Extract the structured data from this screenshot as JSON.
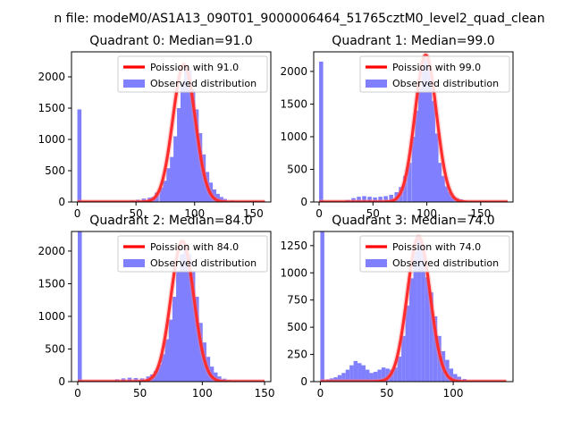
{
  "figure": {
    "suptitle": "n file: modeM0/AS1A13_090T01_9000006464_51765cztM0_level2_quad_clean"
  },
  "colors": {
    "hist": "#8080ff",
    "poisson": "#ff0000",
    "poisson_alpha_line": "#ff8080",
    "axes": "#000000"
  },
  "chart_data": [
    {
      "type": "bar",
      "title": "Quadrant 0: Median=91.0",
      "xlabel": "",
      "ylabel": "",
      "xlim": [
        -5,
        165
      ],
      "ylim": [
        0,
        2400
      ],
      "xticks": [
        0,
        50,
        100,
        150
      ],
      "yticks": [
        0,
        500,
        1000,
        1500,
        2000
      ],
      "bin_width": 3.5,
      "bins": [
        [
          0,
          1480
        ],
        [
          3,
          0
        ],
        [
          10,
          0
        ],
        [
          20,
          5
        ],
        [
          30,
          10
        ],
        [
          40,
          15
        ],
        [
          45,
          25
        ],
        [
          50,
          35
        ],
        [
          55,
          55
        ],
        [
          60,
          70
        ],
        [
          63,
          80
        ],
        [
          66,
          150
        ],
        [
          70,
          230
        ],
        [
          73,
          340
        ],
        [
          76,
          540
        ],
        [
          79,
          720
        ],
        [
          82,
          1050
        ],
        [
          85,
          1500
        ],
        [
          88,
          1900
        ],
        [
          91,
          2150
        ],
        [
          94,
          2100
        ],
        [
          97,
          1800
        ],
        [
          100,
          1480
        ],
        [
          103,
          1100
        ],
        [
          106,
          760
        ],
        [
          109,
          480
        ],
        [
          112,
          310
        ],
        [
          115,
          200
        ],
        [
          118,
          130
        ],
        [
          121,
          80
        ],
        [
          124,
          50
        ],
        [
          130,
          25
        ],
        [
          140,
          10
        ],
        [
          150,
          5
        ],
        [
          160,
          2
        ]
      ],
      "poisson": {
        "lambda": 91.0,
        "peak": 2200
      },
      "legend": {
        "placement": "top-right",
        "entries": [
          "Poission with 91.0",
          "Observed distribution"
        ]
      }
    },
    {
      "type": "bar",
      "title": "Quadrant 1: Median=99.0",
      "xlabel": "",
      "ylabel": "",
      "xlim": [
        -5,
        180
      ],
      "ylim": [
        0,
        2300
      ],
      "xticks": [
        0,
        50,
        100,
        150
      ],
      "yticks": [
        0,
        500,
        1000,
        1500,
        2000
      ],
      "bin_width": 3.8,
      "bins": [
        [
          0,
          2150
        ],
        [
          5,
          0
        ],
        [
          15,
          10
        ],
        [
          25,
          30
        ],
        [
          30,
          60
        ],
        [
          35,
          80
        ],
        [
          40,
          90
        ],
        [
          45,
          80
        ],
        [
          50,
          70
        ],
        [
          55,
          80
        ],
        [
          60,
          90
        ],
        [
          65,
          110
        ],
        [
          70,
          150
        ],
        [
          74,
          230
        ],
        [
          78,
          400
        ],
        [
          82,
          600
        ],
        [
          86,
          1000
        ],
        [
          89,
          1400
        ],
        [
          92,
          1750
        ],
        [
          95,
          2150
        ],
        [
          98,
          2200
        ],
        [
          101,
          2050
        ],
        [
          104,
          1550
        ],
        [
          107,
          1050
        ],
        [
          110,
          600
        ],
        [
          113,
          400
        ],
        [
          116,
          240
        ],
        [
          119,
          160
        ],
        [
          122,
          100
        ],
        [
          126,
          60
        ],
        [
          130,
          40
        ],
        [
          140,
          20
        ],
        [
          150,
          8
        ],
        [
          165,
          3
        ]
      ],
      "poisson": {
        "lambda": 99.0,
        "peak": 2250
      },
      "legend": {
        "placement": "top-right",
        "entries": [
          "Poission with 99.0",
          "Observed distribution"
        ]
      }
    },
    {
      "type": "bar",
      "title": "Quadrant 2: Median=84.0",
      "xlabel": "",
      "ylabel": "",
      "xlim": [
        -5,
        155
      ],
      "ylim": [
        0,
        2300
      ],
      "xticks": [
        0,
        50,
        100,
        150
      ],
      "yticks": [
        0,
        500,
        1000,
        1500,
        2000
      ],
      "bin_width": 3.3,
      "bins": [
        [
          0,
          2300
        ],
        [
          5,
          0
        ],
        [
          15,
          5
        ],
        [
          25,
          20
        ],
        [
          30,
          35
        ],
        [
          35,
          50
        ],
        [
          40,
          60
        ],
        [
          45,
          55
        ],
        [
          50,
          50
        ],
        [
          55,
          80
        ],
        [
          58,
          110
        ],
        [
          61,
          160
        ],
        [
          64,
          260
        ],
        [
          67,
          420
        ],
        [
          70,
          650
        ],
        [
          73,
          950
        ],
        [
          76,
          1300
        ],
        [
          79,
          1700
        ],
        [
          82,
          1950
        ],
        [
          85,
          2100
        ],
        [
          88,
          1950
        ],
        [
          91,
          1700
        ],
        [
          94,
          1300
        ],
        [
          97,
          900
        ],
        [
          100,
          600
        ],
        [
          103,
          380
        ],
        [
          106,
          230
        ],
        [
          109,
          140
        ],
        [
          112,
          80
        ],
        [
          116,
          45
        ],
        [
          120,
          25
        ],
        [
          130,
          12
        ],
        [
          140,
          5
        ],
        [
          150,
          2
        ]
      ],
      "poisson": {
        "lambda": 84.0,
        "peak": 2150
      },
      "legend": {
        "placement": "top-right",
        "entries": [
          "Poission with 84.0",
          "Observed distribution"
        ]
      }
    },
    {
      "type": "bar",
      "title": "Quadrant 3: Median=74.0",
      "xlabel": "",
      "ylabel": "",
      "xlim": [
        -5,
        145
      ],
      "ylim": [
        0,
        1380
      ],
      "xticks": [
        0,
        50,
        100
      ],
      "yticks": [
        0,
        250,
        500,
        750,
        1000,
        1250
      ],
      "bin_width": 3.0,
      "bins": [
        [
          0,
          1380
        ],
        [
          4,
          20
        ],
        [
          7,
          30
        ],
        [
          10,
          40
        ],
        [
          13,
          60
        ],
        [
          16,
          80
        ],
        [
          19,
          110
        ],
        [
          22,
          150
        ],
        [
          25,
          190
        ],
        [
          28,
          170
        ],
        [
          31,
          150
        ],
        [
          34,
          110
        ],
        [
          37,
          80
        ],
        [
          40,
          90
        ],
        [
          43,
          110
        ],
        [
          46,
          130
        ],
        [
          49,
          120
        ],
        [
          52,
          110
        ],
        [
          55,
          130
        ],
        [
          58,
          230
        ],
        [
          61,
          420
        ],
        [
          64,
          700
        ],
        [
          67,
          950
        ],
        [
          70,
          1200
        ],
        [
          73,
          1320
        ],
        [
          76,
          1250
        ],
        [
          79,
          960
        ],
        [
          82,
          820
        ],
        [
          85,
          600
        ],
        [
          88,
          420
        ],
        [
          91,
          280
        ],
        [
          94,
          200
        ],
        [
          97,
          120
        ],
        [
          100,
          70
        ],
        [
          103,
          45
        ],
        [
          107,
          25
        ],
        [
          115,
          12
        ],
        [
          125,
          5
        ],
        [
          135,
          2
        ]
      ],
      "poisson": {
        "lambda": 74.0,
        "peak": 1330
      },
      "legend": {
        "placement": "top-right",
        "entries": [
          "Poission with 74.0",
          "Observed distribution"
        ]
      }
    }
  ]
}
